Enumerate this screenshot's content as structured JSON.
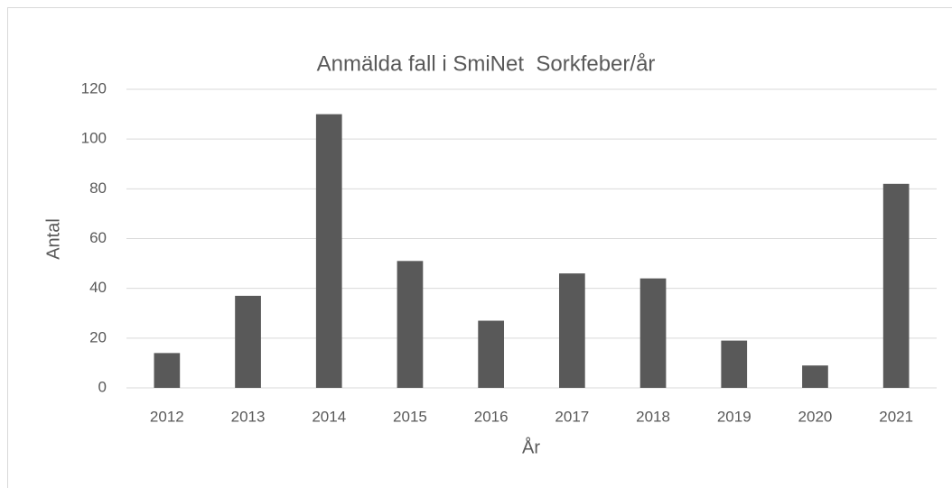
{
  "chart_data": {
    "type": "bar",
    "title": "Anmälda fall i SmiNet  Sorkfeber/år",
    "x_label": "År",
    "y_label": "Antal",
    "categories": [
      "2012",
      "2013",
      "2014",
      "2015",
      "2016",
      "2017",
      "2018",
      "2019",
      "2020",
      "2021"
    ],
    "values": [
      14,
      37,
      110,
      51,
      27,
      46,
      44,
      19,
      9,
      82
    ],
    "color": "#595959",
    "ylim": [
      0,
      120
    ],
    "yticks": [
      0,
      20,
      40,
      60,
      80,
      100,
      120
    ],
    "grid": true
  }
}
